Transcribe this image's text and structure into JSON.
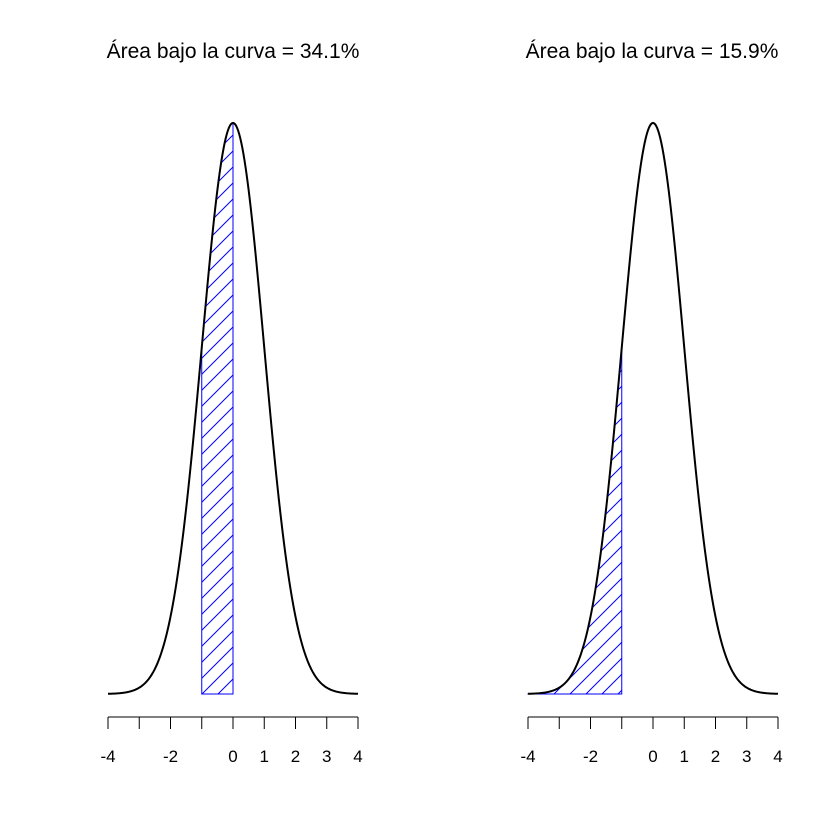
{
  "chart_data": [
    {
      "type": "area",
      "title": "Área bajo la curva = 34.1%",
      "curve": "standard-normal-density",
      "xlim": [
        -4,
        4
      ],
      "ylim": [
        0,
        0.3989
      ],
      "x_ticks": [
        -4,
        -3,
        -2,
        -1,
        0,
        1,
        2,
        3,
        4
      ],
      "x_tick_labels": [
        "-4",
        "",
        "-2",
        "",
        "0",
        "1",
        "2",
        "3",
        "4"
      ],
      "shaded_region": [
        -1,
        0
      ],
      "shaded_area_percent": 34.1,
      "shade_style": "hatched",
      "shade_color": "#0000ff",
      "curve_color": "#000000",
      "grid": false
    },
    {
      "type": "area",
      "title": "Área bajo la curva = 15.9%",
      "curve": "standard-normal-density",
      "xlim": [
        -4,
        4
      ],
      "ylim": [
        0,
        0.3989
      ],
      "x_ticks": [
        -4,
        -3,
        -2,
        -1,
        0,
        1,
        2,
        3,
        4
      ],
      "x_tick_labels": [
        "-4",
        "",
        "-2",
        "",
        "0",
        "1",
        "2",
        "3",
        "4"
      ],
      "shaded_region": [
        -4,
        -1
      ],
      "shaded_area_percent": 15.9,
      "shade_style": "hatched",
      "shade_color": "#0000ff",
      "curve_color": "#000000",
      "grid": false
    }
  ]
}
